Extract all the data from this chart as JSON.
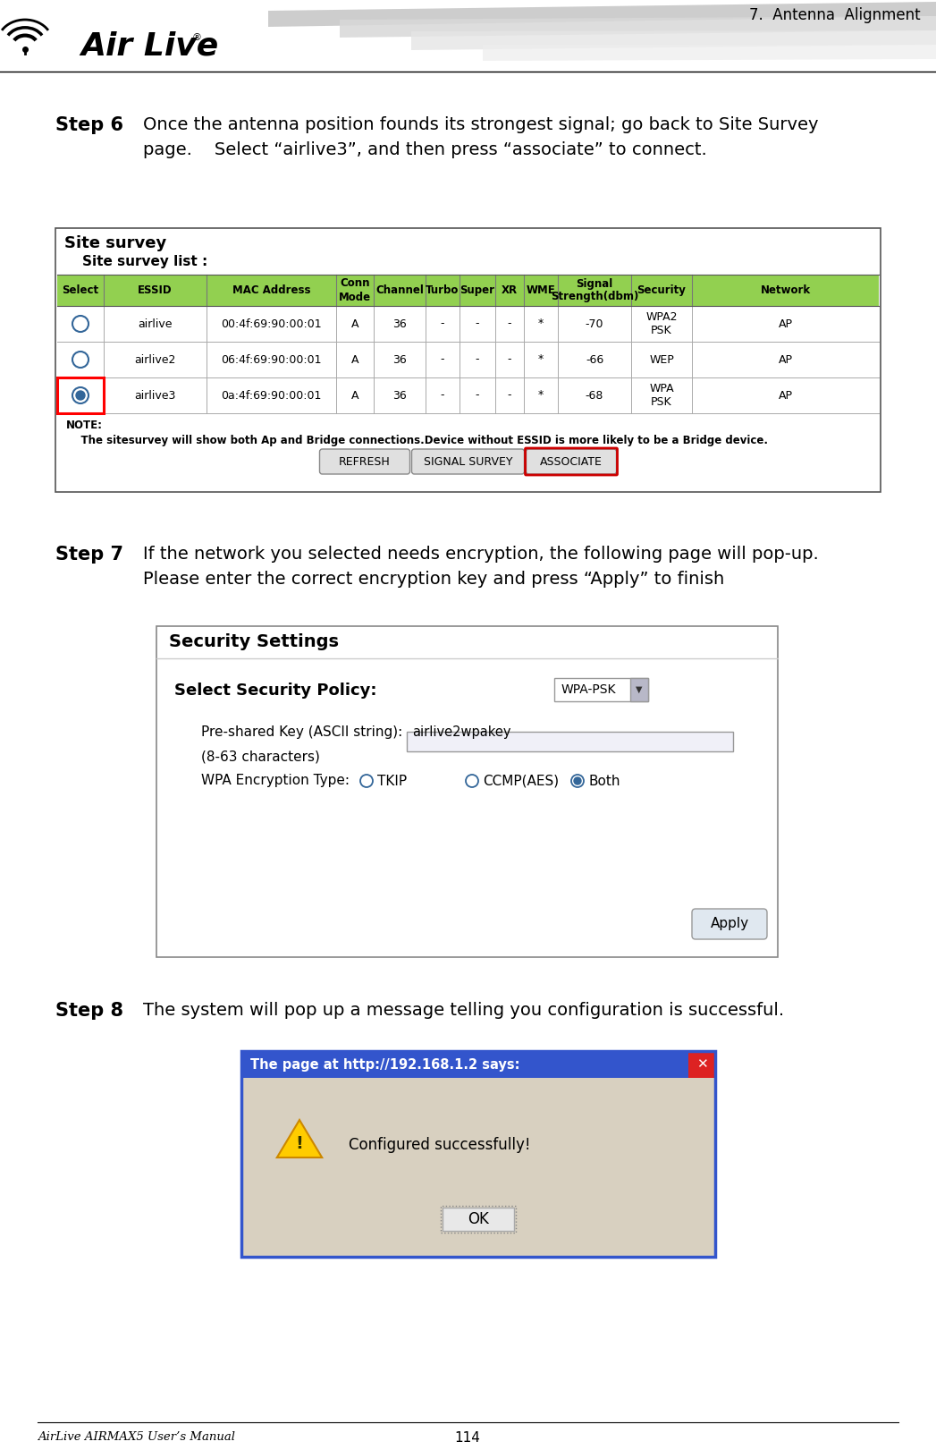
{
  "title_text": "7.  Antenna  Alignment",
  "footer_left": "AirLive AIRMAX5 User’s Manual",
  "footer_center": "114",
  "bg_color": "#ffffff",
  "step6_label": "Step 6",
  "step6_text": "Once the antenna position founds its strongest signal; go back to Site Survey\npage.    Select “airlive3”, and then press “associate” to connect.",
  "step7_label": "Step 7",
  "step7_text": "If the network you selected needs encryption, the following page will pop-up.\nPlease enter the correct encryption key and press “Apply” to finish",
  "step8_label": "Step 8",
  "step8_text": "The system will pop up a message telling you configuration is successful.",
  "site_survey_title": "Site survey",
  "site_survey_subtitle": "Site survey list :",
  "table_header_bg": "#92d050",
  "table_headers": [
    "Select",
    "ESSID",
    "MAC Address",
    "Conn\nMode",
    "Channel",
    "Turbo",
    "Super",
    "XR",
    "WME",
    "Signal\nStrength(dbm)",
    "Security",
    "Network"
  ],
  "table_rows": [
    [
      "",
      "airlive",
      "00:4f:69:90:00:01",
      "A",
      "36",
      "-",
      "-",
      "-",
      "*",
      "-70",
      "WPA2\nPSK",
      "AP"
    ],
    [
      "",
      "airlive2",
      "06:4f:69:90:00:01",
      "A",
      "36",
      "-",
      "-",
      "-",
      "*",
      "-66",
      "WEP",
      "AP"
    ],
    [
      "sel",
      "airlive3",
      "0a:4f:69:90:00:01",
      "A",
      "36",
      "-",
      "-",
      "-",
      "*",
      "-68",
      "WPA\nPSK",
      "AP"
    ]
  ],
  "note_text": "NOTE:\n    The sitesurvey will show both Ap and Bridge connections.Device without ESSID is more likely to be a Bridge device.",
  "btn_refresh": "REFRESH",
  "btn_signal": "SIGNAL SURVEY",
  "btn_associate": "ASSOCIATE",
  "security_title": "Security Settings",
  "security_policy_label": "Select Security Policy:",
  "security_policy_value": "WPA-PSK",
  "psk_label": "Pre-shared Key (ASCII string):",
  "psk_value": "airlive2wpakey",
  "psk_hint": "(8-63 characters)",
  "enc_label": "WPA Encryption Type:",
  "enc_options": [
    "TKIP",
    "CCMP(AES)",
    "Both"
  ],
  "enc_selected": 2,
  "apply_btn": "Apply",
  "popup_title": "The page at http://192.168.1.2 says:",
  "popup_msg": "Configured successfully!",
  "popup_btn": "OK",
  "table_border_color": "#555555",
  "selected_row_border": "#ff0000",
  "popup_title_bg": "#3355cc",
  "popup_body_bg": "#d8d0c0",
  "popup_x_bg": "#dd2222"
}
